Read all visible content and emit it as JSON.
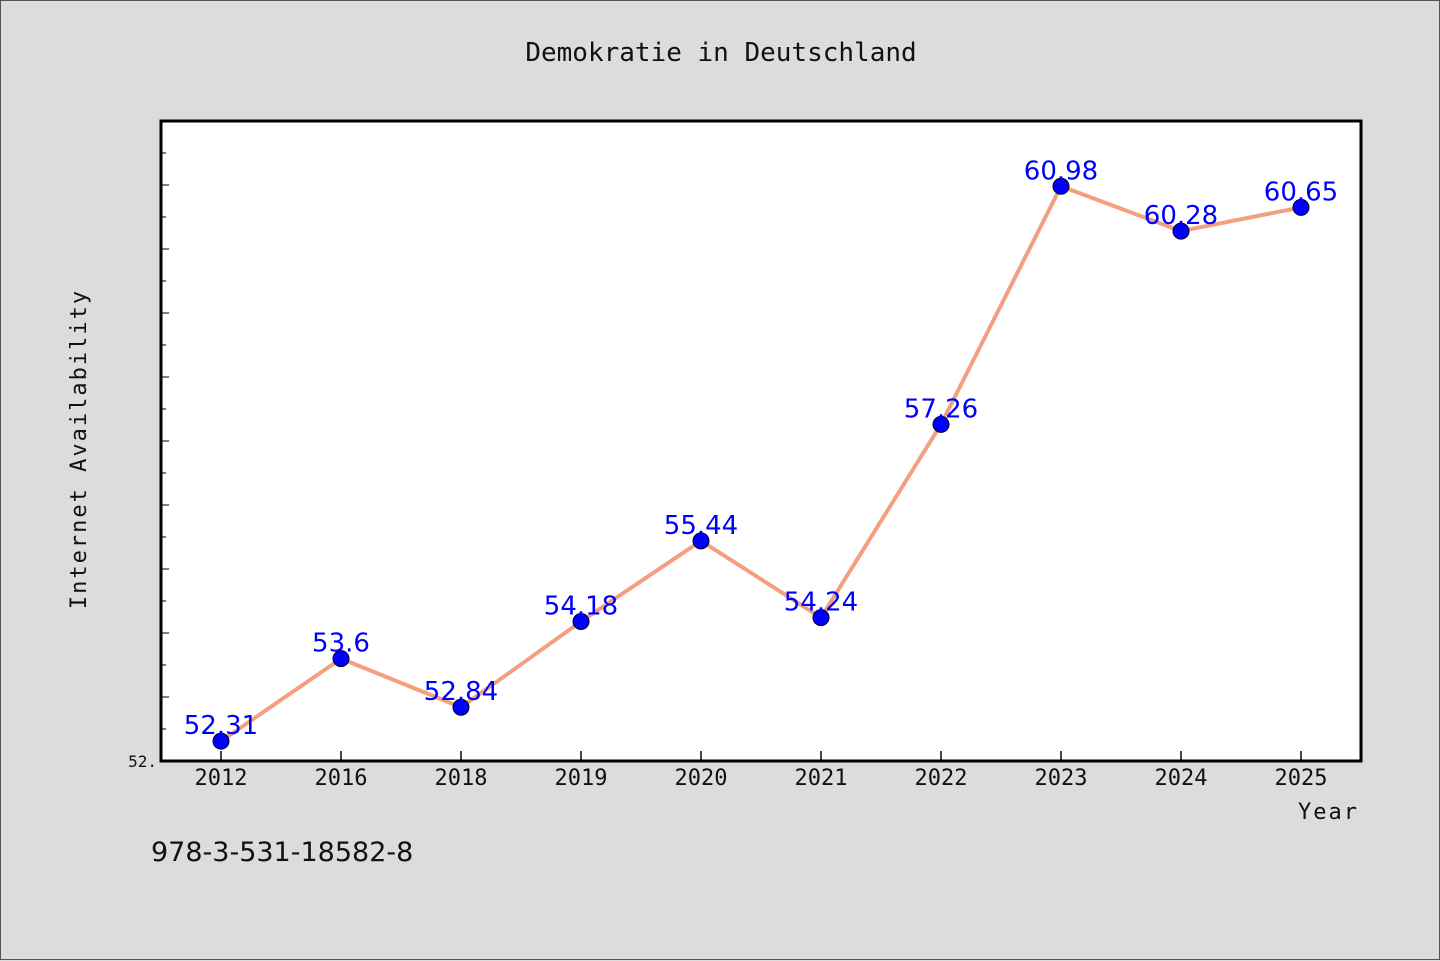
{
  "chart_data": {
    "type": "line",
    "title": "Demokratie in Deutschland",
    "xlabel": "Year",
    "ylabel": "Internet Availability",
    "categories": [
      "2012",
      "2016",
      "2018",
      "2019",
      "2020",
      "2021",
      "2022",
      "2023",
      "2024",
      "2025"
    ],
    "series": [
      {
        "values": [
          52.31,
          53.6,
          52.84,
          54.18,
          55.44,
          54.24,
          57.26,
          60.98,
          60.28,
          60.65
        ],
        "labels": [
          "52.31",
          "53.6",
          "52.84",
          "54.18",
          "55.44",
          "54.24",
          "57.26",
          "60.98",
          "60.28",
          "60.65"
        ]
      }
    ],
    "ylim": [
      52.0,
      62.0
    ],
    "y_tick_labels": [
      "52."
    ],
    "grid": false,
    "colors": {
      "line": "#f4a080",
      "marker": "#0000ff",
      "data_label": "#0000ff",
      "plot_bg": "#ffffff",
      "page_bg": "#dcdcdc"
    }
  },
  "footer": {
    "isbn": "978-3-531-18582-8"
  }
}
